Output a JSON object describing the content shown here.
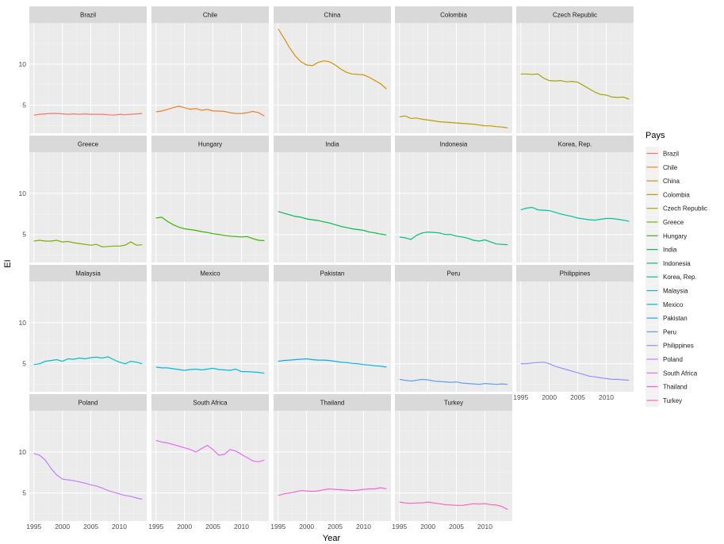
{
  "chart_data": {
    "type": "line",
    "layout": "facet_wrap",
    "xlabel": "Year",
    "ylabel": "EI",
    "xticks": [
      1995,
      2000,
      2005,
      2010
    ],
    "yticks": [
      5,
      10
    ],
    "xlim": [
      1994.2,
      2014.8
    ],
    "ylim": [
      1.6,
      15.0
    ],
    "grid": true,
    "legend": {
      "title": "Pays",
      "position": "right"
    },
    "x": [
      1995,
      1996,
      1997,
      1998,
      1999,
      2000,
      2001,
      2002,
      2003,
      2004,
      2005,
      2006,
      2007,
      2008,
      2009,
      2010,
      2011,
      2012,
      2013,
      2014
    ],
    "series": [
      {
        "name": "Brazil",
        "color": "#F8766D",
        "values": [
          3.8,
          3.9,
          3.95,
          4.0,
          4.0,
          3.95,
          3.9,
          3.95,
          3.9,
          3.95,
          3.9,
          3.9,
          3.9,
          3.85,
          3.8,
          3.9,
          3.85,
          3.9,
          3.95,
          4.0
        ]
      },
      {
        "name": "Chile",
        "color": "#EA8331",
        "values": [
          4.2,
          4.3,
          4.5,
          4.7,
          4.9,
          4.7,
          4.5,
          4.6,
          4.4,
          4.5,
          4.3,
          4.3,
          4.25,
          4.1,
          4.0,
          4.0,
          4.1,
          4.25,
          4.1,
          3.7
        ]
      },
      {
        "name": "China",
        "color": "#D89000",
        "values": [
          14.3,
          13.2,
          12.0,
          11.0,
          10.3,
          9.9,
          9.8,
          10.2,
          10.4,
          10.3,
          9.9,
          9.4,
          9.0,
          8.8,
          8.75,
          8.7,
          8.4,
          8.0,
          7.6,
          7.0
        ]
      },
      {
        "name": "Colombia",
        "color": "#C09B00",
        "values": [
          3.6,
          3.7,
          3.4,
          3.45,
          3.3,
          3.2,
          3.1,
          3.0,
          2.95,
          2.9,
          2.85,
          2.8,
          2.75,
          2.7,
          2.6,
          2.5,
          2.5,
          2.4,
          2.35,
          2.25
        ]
      },
      {
        "name": "Czech Republic",
        "color": "#A3A500",
        "values": [
          8.8,
          8.8,
          8.75,
          8.8,
          8.3,
          8.0,
          7.95,
          8.0,
          7.85,
          7.9,
          7.8,
          7.4,
          7.0,
          6.6,
          6.3,
          6.25,
          6.0,
          5.95,
          6.0,
          5.75
        ]
      },
      {
        "name": "Greece",
        "color": "#7CAE00",
        "values": [
          4.2,
          4.3,
          4.2,
          4.2,
          4.3,
          4.1,
          4.15,
          4.0,
          3.9,
          3.8,
          3.7,
          3.8,
          3.5,
          3.55,
          3.6,
          3.6,
          3.7,
          4.1,
          3.7,
          3.75
        ]
      },
      {
        "name": "Hungary",
        "color": "#39B600",
        "values": [
          7.0,
          7.1,
          6.6,
          6.2,
          5.9,
          5.7,
          5.6,
          5.5,
          5.35,
          5.25,
          5.1,
          5.0,
          4.9,
          4.8,
          4.75,
          4.7,
          4.75,
          4.5,
          4.3,
          4.25
        ]
      },
      {
        "name": "India",
        "color": "#00BB4E",
        "values": [
          7.8,
          7.6,
          7.4,
          7.2,
          7.1,
          6.9,
          6.8,
          6.7,
          6.55,
          6.4,
          6.2,
          6.0,
          5.85,
          5.7,
          5.6,
          5.5,
          5.3,
          5.2,
          5.05,
          4.95
        ]
      },
      {
        "name": "Indonesia",
        "color": "#00BF7D",
        "values": [
          4.7,
          4.6,
          4.4,
          4.9,
          5.2,
          5.3,
          5.25,
          5.2,
          5.0,
          5.0,
          4.8,
          4.7,
          4.55,
          4.3,
          4.2,
          4.35,
          4.1,
          3.85,
          3.8,
          3.75
        ]
      },
      {
        "name": "Korea, Rep.",
        "color": "#00C1A3",
        "values": [
          8.0,
          8.2,
          8.3,
          8.0,
          7.95,
          7.9,
          7.7,
          7.5,
          7.35,
          7.2,
          7.0,
          6.9,
          6.8,
          6.75,
          6.85,
          6.95,
          6.95,
          6.85,
          6.75,
          6.6
        ]
      },
      {
        "name": "Malaysia",
        "color": "#00BFC4",
        "values": [
          4.9,
          5.0,
          5.3,
          5.4,
          5.5,
          5.3,
          5.6,
          5.55,
          5.7,
          5.6,
          5.75,
          5.8,
          5.7,
          5.85,
          5.5,
          5.2,
          5.0,
          5.3,
          5.2,
          5.0
        ]
      },
      {
        "name": "Mexico",
        "color": "#00B9E3",
        "values": [
          4.6,
          4.5,
          4.5,
          4.4,
          4.3,
          4.2,
          4.3,
          4.35,
          4.25,
          4.35,
          4.45,
          4.3,
          4.25,
          4.2,
          4.35,
          4.05,
          4.05,
          4.0,
          3.95,
          3.85
        ]
      },
      {
        "name": "Pakistan",
        "color": "#00ADFA",
        "values": [
          5.3,
          5.4,
          5.45,
          5.5,
          5.55,
          5.6,
          5.5,
          5.45,
          5.45,
          5.4,
          5.3,
          5.2,
          5.15,
          5.05,
          5.0,
          4.9,
          4.85,
          4.75,
          4.7,
          4.6
        ]
      },
      {
        "name": "Peru",
        "color": "#619CFF",
        "values": [
          3.1,
          3.0,
          2.9,
          3.0,
          3.1,
          3.05,
          2.9,
          2.85,
          2.8,
          2.75,
          2.8,
          2.65,
          2.6,
          2.55,
          2.5,
          2.6,
          2.55,
          2.5,
          2.55,
          2.5
        ]
      },
      {
        "name": "Philippines",
        "color": "#9590FF",
        "values": [
          5.0,
          5.0,
          5.1,
          5.15,
          5.2,
          5.0,
          4.7,
          4.5,
          4.3,
          4.1,
          3.9,
          3.7,
          3.5,
          3.4,
          3.3,
          3.2,
          3.1,
          3.1,
          3.05,
          3.0
        ]
      },
      {
        "name": "Poland",
        "color": "#C77CFF",
        "values": [
          9.8,
          9.6,
          9.0,
          8.0,
          7.2,
          6.7,
          6.6,
          6.5,
          6.35,
          6.2,
          6.0,
          5.85,
          5.6,
          5.3,
          5.1,
          4.9,
          4.7,
          4.6,
          4.4,
          4.25
        ]
      },
      {
        "name": "South Africa",
        "color": "#E76BF3",
        "values": [
          11.4,
          11.2,
          11.1,
          10.9,
          10.7,
          10.5,
          10.3,
          10.0,
          10.4,
          10.8,
          10.3,
          9.6,
          9.7,
          10.3,
          10.1,
          9.7,
          9.3,
          8.9,
          8.8,
          9.0
        ]
      },
      {
        "name": "Thailand",
        "color": "#FA62DB",
        "values": [
          4.7,
          4.9,
          5.0,
          5.15,
          5.3,
          5.25,
          5.2,
          5.25,
          5.4,
          5.5,
          5.45,
          5.4,
          5.35,
          5.3,
          5.35,
          5.45,
          5.5,
          5.5,
          5.65,
          5.5
        ]
      },
      {
        "name": "Turkey",
        "color": "#FF62BC",
        "values": [
          3.9,
          3.8,
          3.75,
          3.8,
          3.8,
          3.9,
          3.8,
          3.7,
          3.6,
          3.55,
          3.5,
          3.5,
          3.6,
          3.7,
          3.65,
          3.7,
          3.6,
          3.55,
          3.35,
          3.0
        ]
      }
    ]
  }
}
